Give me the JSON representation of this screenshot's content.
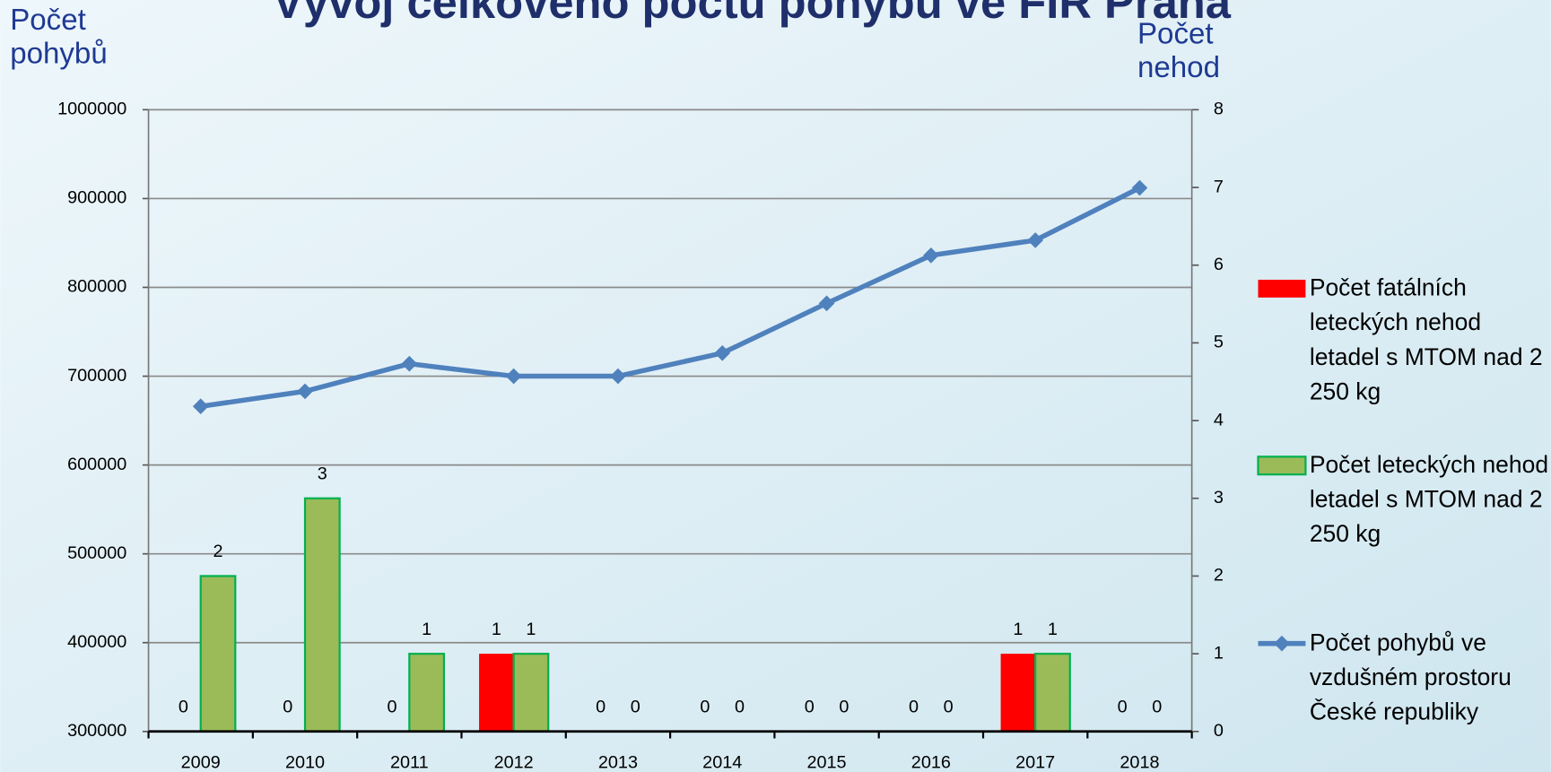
{
  "chart_data": {
    "type": "bar_line",
    "title": "Vývoj celkového počtu pohybů ve FIR Praha",
    "y_label": "Počet pohybů",
    "y2_label": "Počet nehod",
    "categories": [
      "2009",
      "2010",
      "2011",
      "2012",
      "2013",
      "2014",
      "2015",
      "2016",
      "2017",
      "2018"
    ],
    "series": [
      {
        "name": "Počet fatálních leteckých nehod letadel s MTOM nad 2 250 kg",
        "type": "bar",
        "axis": "y2",
        "color": "#ff0000",
        "values": [
          0,
          0,
          0,
          1,
          0,
          0,
          0,
          0,
          1,
          0
        ]
      },
      {
        "name": "Počet leteckých nehod letadel s MTOM nad 2 250 kg",
        "type": "bar",
        "axis": "y2",
        "color": "#9bbb59",
        "values": [
          2,
          3,
          1,
          1,
          0,
          0,
          0,
          0,
          1,
          0
        ]
      },
      {
        "name": "Počet pohybů ve vzdušném prostoru České republiky",
        "type": "line",
        "axis": "y",
        "color": "#4f81bd",
        "values": [
          666000,
          683000,
          714000,
          700000,
          700000,
          726000,
          782000,
          836000,
          853000,
          912000
        ]
      }
    ],
    "ylim": [
      300000,
      1000000
    ],
    "yticks": [
      300000,
      400000,
      500000,
      600000,
      700000,
      800000,
      900000,
      1000000
    ],
    "y2lim": [
      0,
      8
    ],
    "y2ticks": [
      0,
      1,
      2,
      3,
      4,
      5,
      6,
      7,
      8
    ],
    "grid": true
  }
}
